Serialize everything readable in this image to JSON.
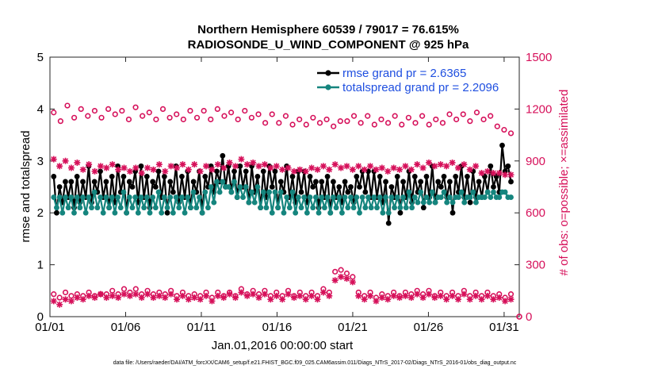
{
  "chart_data": {
    "type": "line",
    "title_line1": "Northern Hemisphere 60539 / 79017 = 76.615%",
    "title_line2": "RADIOSONDE_U_WIND_COMPONENT @ 925 hPa",
    "ylabel_left": "rmse and totalspread",
    "ylabel_right": "# of obs: o=possible; ×=assimilated",
    "xlabel": "Jan.01,2016 00:00:00 start",
    "footer": "data file: /Users/raeder/DAI/ATM_forcXX/CAM6_setup/f.e21.FHIST_BGC.f09_025.CAM6assim.011/Diags_NTrS_2017-02/Diags_NTrS_2016-01/obs_diag_output.nc",
    "x_range": [
      1,
      32
    ],
    "x_ticks": [
      1,
      6,
      11,
      16,
      21,
      26,
      31
    ],
    "x_tick_labels": [
      "01/01",
      "01/06",
      "01/11",
      "01/16",
      "01/21",
      "01/26",
      "01/31"
    ],
    "ylim_left": [
      0,
      5
    ],
    "y_ticks_left": [
      0,
      1,
      2,
      3,
      4,
      5
    ],
    "ylim_right": [
      0,
      1500
    ],
    "y_ticks_right": [
      0,
      300,
      600,
      900,
      1200,
      1500
    ],
    "legend_position": "top-right",
    "series": [
      {
        "name": "rmse",
        "legend_label": "rmse grand pr = 2.6365",
        "axis": "left",
        "color": "#000000",
        "marker": "filled-circle",
        "line": true,
        "values": [
          2.7,
          2.0,
          2.5,
          2.2,
          2.6,
          2.3,
          2.6,
          2.1,
          2.7,
          2.2,
          2.6,
          2.3,
          2.9,
          2.2,
          2.6,
          2.4,
          2.8,
          2.3,
          2.6,
          2.1,
          2.7,
          2.2,
          2.9,
          2.4,
          2.7,
          2.0,
          2.6,
          2.5,
          2.8,
          2.2,
          2.9,
          2.3,
          2.7,
          2.1,
          2.6,
          2.5,
          2.8,
          2.3,
          2.7,
          2.0,
          2.6,
          2.4,
          2.9,
          2.2,
          2.7,
          2.3,
          2.8,
          2.1,
          2.6,
          2.4,
          2.8,
          2.0,
          2.7,
          2.5,
          2.9,
          2.4,
          2.8,
          2.6,
          3.1,
          2.5,
          2.9,
          2.4,
          2.8,
          2.3,
          2.9,
          2.5,
          2.8,
          2.2,
          2.9,
          2.4,
          2.7,
          2.1,
          2.8,
          2.3,
          2.9,
          2.5,
          2.8,
          2.1,
          2.6,
          2.4,
          2.9,
          2.3,
          2.7,
          2.2,
          2.8,
          2.4,
          2.8,
          2.2,
          2.7,
          2.5,
          2.6,
          2.1,
          2.6,
          2.3,
          2.7,
          2.0,
          2.6,
          2.3,
          2.5,
          2.2,
          2.6,
          2.4,
          2.5,
          2.2,
          2.7,
          2.5,
          2.8,
          2.4,
          2.8,
          2.3,
          2.8,
          2.3,
          2.7,
          2.2,
          2.6,
          1.8,
          2.5,
          2.3,
          2.7,
          2.0,
          2.6,
          2.3,
          2.8,
          2.2,
          2.7,
          2.4,
          2.6,
          2.1,
          2.7,
          2.3,
          2.9,
          2.2,
          2.6,
          2.5,
          2.7,
          2.3,
          2.6,
          2.0,
          2.7,
          2.4,
          2.9,
          2.3,
          2.7,
          2.2,
          2.8,
          2.3,
          2.6,
          2.3,
          2.7,
          2.4,
          2.9,
          2.5,
          2.7,
          2.4,
          3.3,
          2.8,
          2.9,
          2.6
        ]
      },
      {
        "name": "totalspread",
        "legend_label": "totalspread grand pr = 2.2096",
        "axis": "left",
        "color": "#15857e",
        "marker": "filled-circle",
        "line": true,
        "values": [
          2.3,
          2.1,
          2.3,
          2.0,
          2.3,
          2.1,
          2.3,
          2.0,
          2.3,
          2.1,
          2.3,
          2.0,
          2.3,
          2.1,
          2.4,
          2.1,
          2.3,
          2.0,
          2.3,
          2.1,
          2.3,
          2.0,
          2.3,
          2.1,
          2.4,
          2.0,
          2.3,
          2.1,
          2.3,
          2.0,
          2.3,
          2.1,
          2.3,
          2.0,
          2.3,
          2.1,
          2.4,
          2.0,
          2.3,
          2.1,
          2.3,
          2.0,
          2.3,
          2.1,
          2.3,
          2.0,
          2.3,
          2.1,
          2.4,
          2.1,
          2.3,
          2.0,
          2.4,
          2.1,
          2.5,
          2.2,
          2.6,
          2.4,
          2.6,
          2.5,
          2.5,
          2.4,
          2.6,
          2.3,
          2.5,
          2.3,
          2.5,
          2.2,
          2.4,
          2.2,
          2.5,
          2.1,
          2.4,
          2.1,
          2.4,
          2.0,
          2.4,
          2.1,
          2.4,
          2.0,
          2.3,
          2.1,
          2.4,
          2.0,
          2.3,
          2.1,
          2.3,
          2.0,
          2.3,
          2.1,
          2.3,
          2.0,
          2.3,
          2.1,
          2.3,
          2.0,
          2.3,
          2.1,
          2.3,
          2.0,
          2.3,
          2.1,
          2.3,
          2.1,
          2.3,
          2.0,
          2.3,
          2.1,
          2.3,
          2.1,
          2.3,
          2.1,
          2.3,
          2.0,
          2.3,
          2.0,
          2.3,
          2.1,
          2.3,
          2.1,
          2.3,
          2.1,
          2.4,
          2.1,
          2.3,
          2.2,
          2.4,
          2.2,
          2.3,
          2.2,
          2.4,
          2.2,
          2.3,
          2.3,
          2.4,
          2.2,
          2.3,
          2.2,
          2.3,
          2.3,
          2.4,
          2.2,
          2.3,
          2.3,
          2.4,
          2.2,
          2.3,
          2.3,
          2.3,
          2.4,
          2.3,
          2.4,
          2.3,
          2.3,
          2.4,
          2.4,
          2.3,
          2.3
        ]
      },
      {
        "name": "obs possible (upper)",
        "axis": "right",
        "color": "#d6105a",
        "marker": "open-circle",
        "line": false,
        "values": [
          1180,
          1130,
          1220,
          1150,
          1200,
          1160,
          1190,
          1150,
          1200,
          1170,
          1190,
          1140,
          1210,
          1160,
          1180,
          1140,
          1200,
          1150,
          1170,
          1140,
          1190,
          1150,
          1190,
          1140,
          1200,
          1160,
          1180,
          1140,
          1190,
          1150,
          1170,
          1120,
          1170,
          1120,
          1160,
          1110,
          1140,
          1110,
          1150,
          1120,
          1140,
          1100,
          1130,
          1130,
          1160,
          1120,
          1160,
          1110,
          1140,
          1120,
          1160,
          1110,
          1150,
          1120,
          1160,
          1110,
          1140,
          1120,
          1170,
          1140,
          1170,
          1130,
          1180,
          1140,
          1160,
          1100,
          1080,
          1060
        ]
      },
      {
        "name": "obs assimilated (upper)",
        "axis": "right",
        "color": "#d6105a",
        "marker": "asterisk",
        "line": false,
        "values": [
          910,
          870,
          900,
          860,
          890,
          850,
          880,
          840,
          870,
          860,
          880,
          850,
          860,
          840,
          860,
          830,
          860,
          850,
          880,
          840,
          870,
          860,
          880,
          850,
          880,
          840,
          870,
          850,
          880,
          860,
          890,
          870,
          910,
          880,
          890,
          870,
          880,
          860,
          870,
          850,
          860,
          840,
          850,
          840,
          860,
          850,
          870,
          850,
          880,
          860,
          870,
          850,
          870,
          850,
          870,
          850,
          860,
          840,
          860,
          850,
          870,
          850,
          880,
          860,
          890,
          870,
          880,
          870,
          890,
          860,
          880,
          850,
          870,
          830,
          840,
          830,
          830,
          820,
          820
        ]
      },
      {
        "name": "obs possible (lower)",
        "axis": "right",
        "color": "#d6105a",
        "marker": "open-circle",
        "line": false,
        "values": [
          130,
          110,
          140,
          120,
          130,
          120,
          140,
          120,
          130,
          130,
          150,
          130,
          160,
          140,
          160,
          130,
          150,
          130,
          140,
          130,
          150,
          120,
          140,
          120,
          130,
          120,
          140,
          110,
          140,
          120,
          140,
          120,
          160,
          130,
          150,
          130,
          150,
          120,
          140,
          120,
          150,
          120,
          140,
          120,
          140,
          120,
          160,
          140,
          260,
          270,
          250,
          230,
          140,
          120,
          140,
          110,
          130,
          120,
          140,
          120,
          140,
          130,
          150,
          130,
          150,
          120,
          140,
          120,
          140,
          120,
          150,
          120,
          140,
          120,
          140,
          120,
          130,
          110,
          130
        ]
      },
      {
        "name": "obs assimilated (lower)",
        "axis": "right",
        "color": "#d6105a",
        "marker": "asterisk",
        "line": false,
        "values": [
          90,
          70,
          100,
          90,
          110,
          100,
          120,
          110,
          130,
          110,
          120,
          110,
          130,
          120,
          130,
          110,
          130,
          110,
          120,
          110,
          130,
          100,
          120,
          100,
          110,
          100,
          120,
          90,
          120,
          110,
          130,
          110,
          140,
          120,
          130,
          110,
          130,
          100,
          120,
          100,
          130,
          110,
          120,
          100,
          120,
          100,
          140,
          120,
          210,
          230,
          220,
          200,
          120,
          100,
          120,
          90,
          110,
          100,
          120,
          110,
          120,
          110,
          130,
          110,
          130,
          110,
          120,
          100,
          120,
          100,
          130,
          100,
          120,
          100,
          120,
          100,
          110,
          90,
          100
        ]
      }
    ]
  }
}
